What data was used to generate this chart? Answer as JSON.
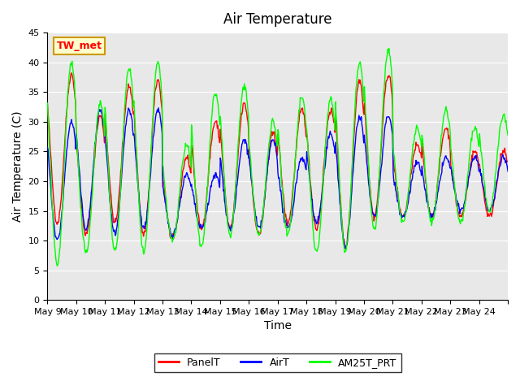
{
  "title": "Air Temperature",
  "xlabel": "Time",
  "ylabel": "Air Temperature (C)",
  "ylim": [
    0,
    45
  ],
  "yticks": [
    0,
    5,
    10,
    15,
    20,
    25,
    30,
    35,
    40,
    45
  ],
  "xtick_labels": [
    "May 9",
    "May 10",
    "May 11",
    "May 12",
    "May 13",
    "May 14",
    "May 15",
    "May 16",
    "May 17",
    "May 18",
    "May 19",
    "May 20",
    "May 21",
    "May 22",
    "May 23",
    "May 24",
    ""
  ],
  "panel_color": "red",
  "air_color": "blue",
  "am25t_color": "lime",
  "legend_labels": [
    "PanelT",
    "AirT",
    "AM25T_PRT"
  ],
  "station_label": "TW_met",
  "station_label_color": "red",
  "station_box_color": "#FFFFCC",
  "station_box_edge_color": "#cc9900",
  "background_color": "#e8e8e8",
  "title_fontsize": 12,
  "axis_label_fontsize": 10,
  "tick_fontsize": 8,
  "days": 16,
  "day_peaks_panel": [
    38,
    31,
    36,
    37,
    24,
    30,
    33,
    28,
    32,
    32,
    37,
    38,
    26,
    29,
    25,
    25
  ],
  "day_troughs_panel": [
    13,
    11,
    13,
    11,
    10,
    12,
    12,
    11,
    13,
    12,
    9,
    14,
    14,
    14,
    14,
    14
  ],
  "day_peaks_air": [
    30,
    32,
    32,
    32,
    21,
    21,
    27,
    27,
    24,
    28,
    31,
    31,
    23,
    24,
    24,
    24
  ],
  "day_troughs_air": [
    10,
    12,
    11,
    12,
    11,
    12,
    12,
    12,
    12,
    13,
    9,
    14,
    14,
    14,
    15,
    15
  ],
  "day_peaks_am25t": [
    40,
    33,
    39,
    40,
    26,
    35,
    36,
    30,
    34,
    34,
    40,
    42,
    29,
    32,
    29,
    31
  ],
  "day_troughs_am25t": [
    6,
    8,
    8,
    8,
    10,
    9,
    11,
    11,
    11,
    8,
    8,
    12,
    13,
    13,
    13,
    15
  ]
}
